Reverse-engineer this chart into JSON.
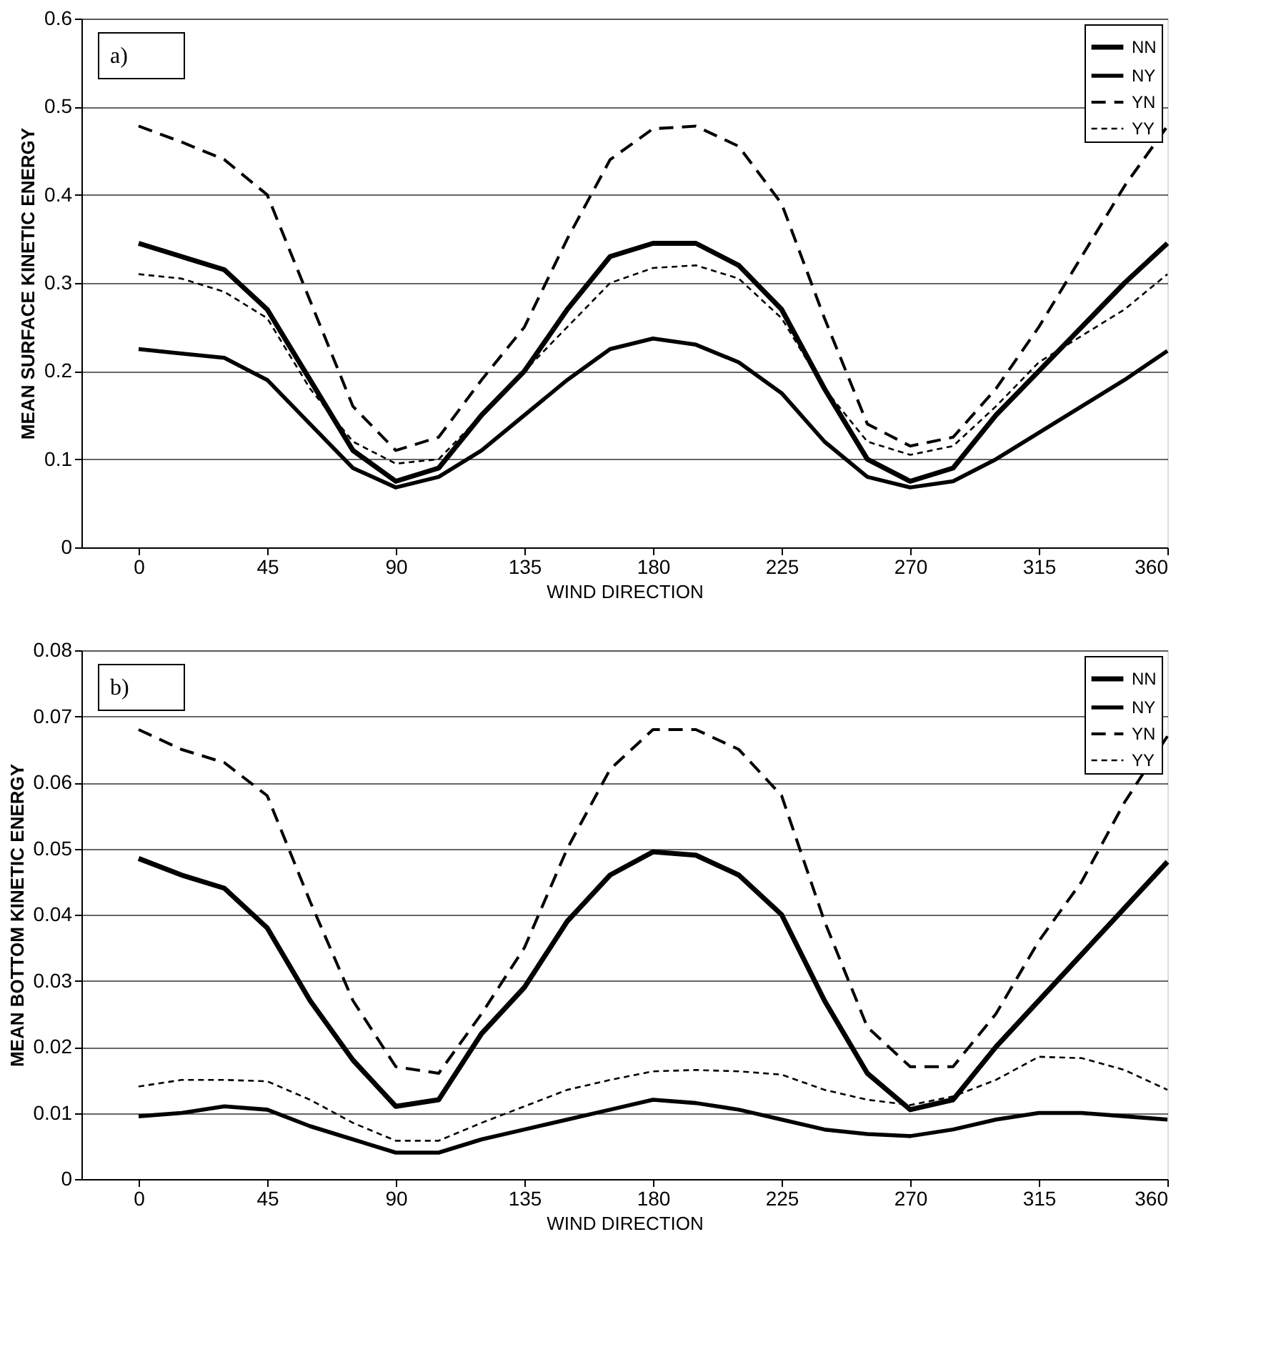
{
  "chart_data": [
    {
      "type": "line",
      "xlabel": "WIND DIRECTION",
      "ylabel": "MEAN SURFACE KINETIC ENERGY",
      "annotations": [
        "a)"
      ],
      "x": [
        0,
        15,
        30,
        45,
        60,
        75,
        90,
        105,
        120,
        135,
        150,
        165,
        180,
        195,
        210,
        225,
        240,
        255,
        270,
        285,
        300,
        315,
        330,
        345,
        360
      ],
      "xlim": [
        -20,
        360
      ],
      "xticks": [
        0,
        45,
        90,
        135,
        180,
        225,
        270,
        315,
        360
      ],
      "ylim": [
        0,
        0.6
      ],
      "yticks": [
        0,
        0.1,
        0.2,
        0.3,
        0.4,
        0.5,
        0.6
      ],
      "grid": "y",
      "legend": "top right",
      "marker": "none",
      "series": [
        {
          "name": "NN",
          "color": "#000000",
          "line_style": "solid",
          "values": [
            0.345,
            0.33,
            0.315,
            0.27,
            0.19,
            0.11,
            0.075,
            0.09,
            0.15,
            0.2,
            0.27,
            0.33,
            0.345,
            0.345,
            0.32,
            0.27,
            0.18,
            0.1,
            0.075,
            0.09,
            0.15,
            0.2,
            0.25,
            0.3,
            0.345
          ]
        },
        {
          "name": "NY",
          "color": "#000000",
          "line_style": "solid",
          "values": [
            0.225,
            0.22,
            0.215,
            0.19,
            0.14,
            0.09,
            0.068,
            0.08,
            0.11,
            0.15,
            0.19,
            0.225,
            0.237,
            0.23,
            0.21,
            0.175,
            0.12,
            0.08,
            0.068,
            0.075,
            0.1,
            0.13,
            0.16,
            0.19,
            0.223
          ]
        },
        {
          "name": "YN",
          "color": "#000000",
          "line_style": "dashed",
          "values": [
            0.478,
            0.46,
            0.44,
            0.4,
            0.28,
            0.16,
            0.11,
            0.125,
            0.19,
            0.25,
            0.35,
            0.44,
            0.475,
            0.478,
            0.455,
            0.39,
            0.26,
            0.14,
            0.115,
            0.125,
            0.18,
            0.25,
            0.33,
            0.41,
            0.478
          ]
        },
        {
          "name": "YY",
          "color": "#000000",
          "line_style": "dotted",
          "values": [
            0.31,
            0.305,
            0.29,
            0.26,
            0.18,
            0.12,
            0.095,
            0.1,
            0.15,
            0.2,
            0.25,
            0.3,
            0.317,
            0.32,
            0.305,
            0.26,
            0.18,
            0.12,
            0.105,
            0.115,
            0.16,
            0.21,
            0.24,
            0.27,
            0.31
          ]
        }
      ]
    },
    {
      "type": "line",
      "xlabel": "WIND DIRECTION",
      "ylabel": "MEAN BOTTOM KINETIC ENERGY",
      "annotations": [
        "b)"
      ],
      "x": [
        0,
        15,
        30,
        45,
        60,
        75,
        90,
        105,
        120,
        135,
        150,
        165,
        180,
        195,
        210,
        225,
        240,
        255,
        270,
        285,
        300,
        315,
        330,
        345,
        360
      ],
      "xlim": [
        -20,
        360
      ],
      "xticks": [
        0,
        45,
        90,
        135,
        180,
        225,
        270,
        315,
        360
      ],
      "ylim": [
        0,
        0.08
      ],
      "yticks": [
        0,
        0.01,
        0.02,
        0.03,
        0.04,
        0.05,
        0.06,
        0.07,
        0.08
      ],
      "grid": "y",
      "legend": "top right",
      "marker": "none",
      "series": [
        {
          "name": "NN",
          "color": "#000000",
          "line_style": "solid",
          "values": [
            0.0485,
            0.046,
            0.044,
            0.038,
            0.027,
            0.018,
            0.011,
            0.012,
            0.022,
            0.029,
            0.039,
            0.046,
            0.0495,
            0.049,
            0.046,
            0.04,
            0.027,
            0.016,
            0.0105,
            0.012,
            0.02,
            0.027,
            0.034,
            0.041,
            0.048
          ]
        },
        {
          "name": "NY",
          "color": "#000000",
          "line_style": "solid",
          "values": [
            0.0095,
            0.01,
            0.011,
            0.0105,
            0.008,
            0.006,
            0.004,
            0.004,
            0.006,
            0.0075,
            0.009,
            0.0105,
            0.012,
            0.0115,
            0.0105,
            0.009,
            0.0075,
            0.0068,
            0.0065,
            0.0075,
            0.009,
            0.01,
            0.01,
            0.0095,
            0.009
          ]
        },
        {
          "name": "YN",
          "color": "#000000",
          "line_style": "dashed",
          "values": [
            0.068,
            0.065,
            0.063,
            0.058,
            0.042,
            0.027,
            0.017,
            0.016,
            0.025,
            0.035,
            0.05,
            0.062,
            0.068,
            0.068,
            0.065,
            0.058,
            0.039,
            0.023,
            0.017,
            0.017,
            0.025,
            0.036,
            0.045,
            0.057,
            0.067
          ]
        },
        {
          "name": "YY",
          "color": "#000000",
          "line_style": "dotted",
          "values": [
            0.014,
            0.015,
            0.015,
            0.0148,
            0.012,
            0.0085,
            0.0058,
            0.0058,
            0.0085,
            0.011,
            0.0135,
            0.015,
            0.0163,
            0.0165,
            0.0163,
            0.0158,
            0.0135,
            0.012,
            0.0112,
            0.0125,
            0.015,
            0.0185,
            0.0183,
            0.0165,
            0.0135
          ]
        }
      ]
    }
  ]
}
